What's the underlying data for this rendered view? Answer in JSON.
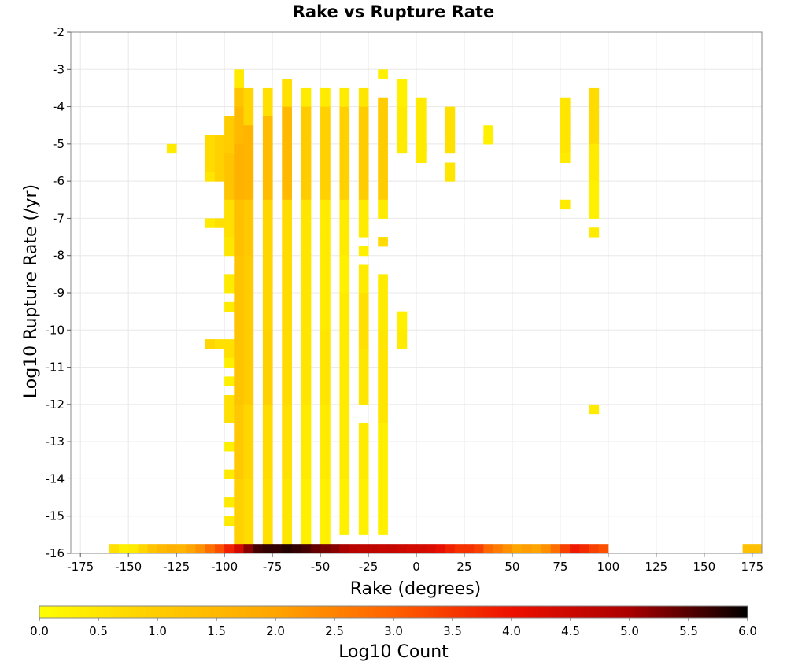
{
  "chart_data": {
    "type": "heatmap",
    "title": "Rake vs Rupture Rate",
    "xlabel": "Rake (degrees)",
    "ylabel": "Log10 Rupture Rate (/yr)",
    "xlim": [
      -180,
      180
    ],
    "ylim": [
      -16,
      -2
    ],
    "x_ticks": [
      "-175",
      "-150",
      "-125",
      "-100",
      "-75",
      "-50",
      "-25",
      "0",
      "25",
      "50",
      "75",
      "100",
      "125",
      "150",
      "175"
    ],
    "y_ticks": [
      "-2",
      "-3",
      "-4",
      "-5",
      "-6",
      "-7",
      "-8",
      "-9",
      "-10",
      "-11",
      "-12",
      "-13",
      "-14",
      "-15",
      "-16"
    ],
    "grid": true,
    "colorbar": {
      "label": "Log10 Count",
      "min": 0.0,
      "max": 6.0,
      "ticks": [
        "0.0",
        "0.5",
        "1.0",
        "1.5",
        "2.0",
        "2.5",
        "3.0",
        "3.5",
        "4.0",
        "4.5",
        "5.0",
        "5.5",
        "6.0"
      ],
      "colors": [
        "#ffff00",
        "#ffcc00",
        "#ffa500",
        "#ff6000",
        "#ee1100",
        "#aa0000",
        "#000000"
      ]
    },
    "cell_width_deg": 5,
    "cell_height_log": 0.25,
    "bottom_row": {
      "y": -16,
      "cells": [
        [
          -160,
          0.6
        ],
        [
          -155,
          0.3
        ],
        [
          -150,
          0.4
        ],
        [
          -145,
          0.8
        ],
        [
          -140,
          1.2
        ],
        [
          -135,
          1.5
        ],
        [
          -130,
          1.7
        ],
        [
          -125,
          1.6
        ],
        [
          -120,
          2.0
        ],
        [
          -115,
          2.3
        ],
        [
          -110,
          2.8
        ],
        [
          -105,
          3.2
        ],
        [
          -100,
          3.8
        ],
        [
          -95,
          4.4
        ],
        [
          -90,
          5.2
        ],
        [
          -85,
          5.6
        ],
        [
          -80,
          5.7
        ],
        [
          -75,
          5.7
        ],
        [
          -70,
          5.8
        ],
        [
          -65,
          5.7
        ],
        [
          -60,
          5.6
        ],
        [
          -55,
          5.4
        ],
        [
          -50,
          5.3
        ],
        [
          -45,
          5.2
        ],
        [
          -40,
          5.0
        ],
        [
          -35,
          4.8
        ],
        [
          -30,
          4.7
        ],
        [
          -25,
          4.7
        ],
        [
          -20,
          4.6
        ],
        [
          -15,
          4.6
        ],
        [
          -10,
          4.5
        ],
        [
          -5,
          4.4
        ],
        [
          0,
          4.4
        ],
        [
          5,
          4.3
        ],
        [
          10,
          4.1
        ],
        [
          15,
          3.8
        ],
        [
          20,
          3.6
        ],
        [
          25,
          3.6
        ],
        [
          30,
          3.4
        ],
        [
          35,
          2.9
        ],
        [
          40,
          2.6
        ],
        [
          45,
          2.3
        ],
        [
          50,
          2.0
        ],
        [
          55,
          2.1
        ],
        [
          60,
          2.0
        ],
        [
          65,
          2.3
        ],
        [
          70,
          2.8
        ],
        [
          75,
          3.4
        ],
        [
          80,
          3.9
        ],
        [
          85,
          3.7
        ],
        [
          90,
          3.4
        ],
        [
          95,
          3.2
        ],
        [
          170,
          1.3
        ],
        [
          175,
          1.3
        ]
      ]
    },
    "columns": [
      {
        "x": -130,
        "cells": [
          [
            -5.0,
            -5.25,
            0.4
          ]
        ]
      },
      {
        "x": -110,
        "cells": [
          [
            -4.75,
            -5.75,
            0.7
          ],
          [
            -5.75,
            -6.0,
            0.5
          ],
          [
            -7.0,
            -7.25,
            0.4
          ],
          [
            -10.25,
            -10.5,
            0.8
          ]
        ]
      },
      {
        "x": -105,
        "cells": [
          [
            -4.75,
            -5.25,
            0.9
          ],
          [
            -5.25,
            -6.0,
            0.9
          ],
          [
            -7.0,
            -7.25,
            0.6
          ],
          [
            -10.25,
            -10.5,
            0.6
          ]
        ]
      },
      {
        "x": -100,
        "cells": [
          [
            -4.25,
            -5.25,
            1.0
          ],
          [
            -5.25,
            -6.5,
            1.2
          ],
          [
            -6.5,
            -7.5,
            0.6
          ],
          [
            -7.5,
            -8.0,
            0.5
          ],
          [
            -8.5,
            -9.0,
            0.4
          ],
          [
            -9.25,
            -9.5,
            0.4
          ],
          [
            -10.25,
            -10.75,
            0.6
          ],
          [
            -10.75,
            -11.0,
            0.3
          ],
          [
            -11.25,
            -11.5,
            0.3
          ],
          [
            -11.75,
            -12.5,
            0.6
          ],
          [
            -13.0,
            -13.25,
            0.3
          ],
          [
            -13.75,
            -14.0,
            0.4
          ],
          [
            -14.5,
            -14.75,
            0.4
          ],
          [
            -15.0,
            -15.25,
            0.4
          ]
        ]
      },
      {
        "x": -95,
        "cells": [
          [
            -3.0,
            -3.5,
            0.4
          ],
          [
            -3.5,
            -4.0,
            1.2
          ],
          [
            -4.0,
            -5.0,
            1.5
          ],
          [
            -5.0,
            -6.5,
            1.7
          ],
          [
            -6.5,
            -8.0,
            1.3
          ],
          [
            -8.0,
            -10.0,
            1.2
          ],
          [
            -10.0,
            -12.0,
            1.2
          ],
          [
            -12.0,
            -14.0,
            1.1
          ],
          [
            -14.0,
            -15.75,
            0.9
          ]
        ]
      },
      {
        "x": -90,
        "cells": [
          [
            -3.5,
            -4.5,
            0.8
          ],
          [
            -4.5,
            -6.5,
            1.6
          ],
          [
            -6.5,
            -8.0,
            1.1
          ],
          [
            -8.0,
            -10.0,
            1.0
          ],
          [
            -10.0,
            -12.0,
            1.0
          ],
          [
            -12.0,
            -14.0,
            0.8
          ],
          [
            -14.0,
            -15.75,
            0.7
          ]
        ]
      },
      {
        "x": -80,
        "cells": [
          [
            -3.5,
            -4.25,
            0.6
          ],
          [
            -4.25,
            -6.5,
            1.4
          ],
          [
            -6.5,
            -8.0,
            0.8
          ],
          [
            -8.0,
            -10.0,
            0.8
          ],
          [
            -10.0,
            -12.0,
            0.9
          ],
          [
            -12.0,
            -14.0,
            0.7
          ],
          [
            -14.0,
            -15.75,
            0.6
          ]
        ]
      },
      {
        "x": -70,
        "cells": [
          [
            -3.25,
            -4.0,
            0.6
          ],
          [
            -4.0,
            -6.5,
            1.5
          ],
          [
            -6.5,
            -8.0,
            0.7
          ],
          [
            -8.0,
            -10.0,
            0.7
          ],
          [
            -10.0,
            -12.0,
            0.7
          ],
          [
            -12.0,
            -14.0,
            0.6
          ],
          [
            -14.0,
            -15.75,
            0.5
          ]
        ]
      },
      {
        "x": -60,
        "cells": [
          [
            -3.5,
            -4.0,
            0.4
          ],
          [
            -4.0,
            -6.5,
            1.0
          ],
          [
            -6.5,
            -8.5,
            0.5
          ],
          [
            -8.5,
            -10.0,
            0.5
          ],
          [
            -10.0,
            -12.0,
            0.5
          ],
          [
            -12.0,
            -14.0,
            0.4
          ],
          [
            -14.0,
            -15.75,
            0.3
          ]
        ]
      },
      {
        "x": -50,
        "cells": [
          [
            -3.5,
            -4.0,
            0.4
          ],
          [
            -4.0,
            -6.5,
            0.9
          ],
          [
            -6.5,
            -8.5,
            0.4
          ],
          [
            -8.5,
            -10.0,
            0.4
          ],
          [
            -10.0,
            -12.0,
            0.5
          ],
          [
            -12.0,
            -14.0,
            0.4
          ],
          [
            -14.0,
            -15.75,
            0.3
          ]
        ]
      },
      {
        "x": -40,
        "cells": [
          [
            -3.5,
            -4.0,
            0.4
          ],
          [
            -4.0,
            -6.5,
            0.9
          ],
          [
            -6.5,
            -8.0,
            0.4
          ],
          [
            -8.0,
            -9.0,
            0.3
          ],
          [
            -9.0,
            -10.5,
            0.4
          ],
          [
            -10.5,
            -12.0,
            0.4
          ],
          [
            -12.0,
            -14.0,
            0.4
          ],
          [
            -14.0,
            -15.5,
            0.3
          ]
        ]
      },
      {
        "x": -30,
        "cells": [
          [
            -3.5,
            -4.0,
            0.5
          ],
          [
            -4.0,
            -6.5,
            1.0
          ],
          [
            -6.5,
            -7.5,
            0.4
          ],
          [
            -7.75,
            -8.0,
            0.3
          ],
          [
            -8.25,
            -9.0,
            0.4
          ],
          [
            -9.0,
            -10.5,
            0.6
          ],
          [
            -10.5,
            -12.0,
            0.5
          ],
          [
            -12.5,
            -14.0,
            0.4
          ],
          [
            -14.0,
            -15.5,
            0.3
          ]
        ]
      },
      {
        "x": -20,
        "cells": [
          [
            -3.0,
            -3.25,
            0.3
          ],
          [
            -3.75,
            -6.5,
            1.0
          ],
          [
            -6.5,
            -7.0,
            0.4
          ],
          [
            -7.5,
            -7.75,
            0.7
          ],
          [
            -8.5,
            -10.0,
            0.4
          ],
          [
            -10.0,
            -12.5,
            0.5
          ],
          [
            -12.5,
            -15.5,
            0.3
          ]
        ]
      },
      {
        "x": -10,
        "cells": [
          [
            -3.25,
            -4.0,
            0.3
          ],
          [
            -4.0,
            -5.25,
            0.4
          ],
          [
            -9.5,
            -10.0,
            0.3
          ],
          [
            -10.0,
            -10.5,
            0.4
          ]
        ]
      },
      {
        "x": 0,
        "cells": [
          [
            -3.75,
            -5.25,
            0.4
          ],
          [
            -5.0,
            -5.5,
            0.4
          ]
        ]
      },
      {
        "x": 15,
        "cells": [
          [
            -4.0,
            -5.25,
            0.6
          ],
          [
            -5.5,
            -6.0,
            0.5
          ]
        ]
      },
      {
        "x": 35,
        "cells": [
          [
            -4.5,
            -5.0,
            0.3
          ],
          [
            -4.75,
            -5.0,
            0.3
          ]
        ]
      },
      {
        "x": 75,
        "cells": [
          [
            -3.75,
            -5.25,
            0.5
          ],
          [
            -5.25,
            -5.5,
            0.4
          ],
          [
            -6.5,
            -6.75,
            0.4
          ]
        ]
      },
      {
        "x": 90,
        "cells": [
          [
            -3.5,
            -5.0,
            0.7
          ],
          [
            -5.0,
            -6.0,
            0.4
          ],
          [
            -6.0,
            -7.0,
            0.3
          ],
          [
            -7.25,
            -7.5,
            0.4
          ],
          [
            -12.0,
            -12.25,
            0.4
          ]
        ]
      }
    ]
  }
}
